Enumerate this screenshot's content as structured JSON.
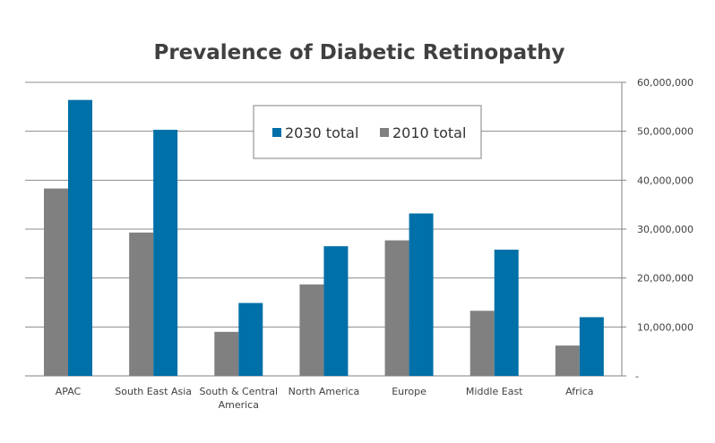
{
  "chart_data": {
    "type": "bar",
    "title": "Prevalence of Diabetic Retinopathy",
    "categories": [
      [
        "APAC"
      ],
      [
        "South East Asia"
      ],
      [
        "South & Central",
        "America"
      ],
      [
        "North America"
      ],
      [
        "Europe"
      ],
      [
        "Middle East"
      ],
      [
        "Africa"
      ]
    ],
    "series": [
      {
        "name": "2010 total",
        "color": "#808080",
        "values": [
          38300000,
          29300000,
          9000000,
          18700000,
          27700000,
          13300000,
          6200000
        ]
      },
      {
        "name": "2030 total",
        "color": "#0070a8",
        "values": [
          56400000,
          50300000,
          14900000,
          26500000,
          33200000,
          25800000,
          12000000
        ]
      }
    ],
    "legend_order": [
      "2030 total",
      "2010 total"
    ],
    "legend_position": "top-center",
    "y_axis_side": "right",
    "ylim": [
      0,
      60000000
    ],
    "yticks": [
      0,
      10000000,
      20000000,
      30000000,
      40000000,
      50000000,
      60000000
    ],
    "ytick_labels": [
      "-",
      "10,000,000",
      "20,000,000",
      "30,000,000",
      "40,000,000",
      "50,000,000",
      "60,000,000"
    ],
    "grid": true
  }
}
